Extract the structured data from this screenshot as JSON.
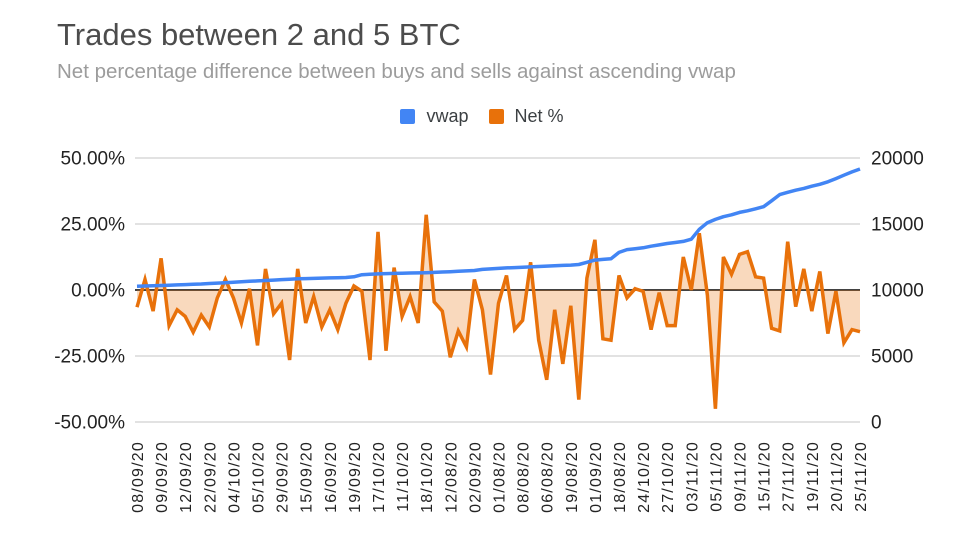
{
  "header": {
    "title": "Trades between 2 and 5 BTC",
    "subtitle": "Net percentage difference between buys and sells against ascending vwap"
  },
  "legend": [
    {
      "label": "vwap",
      "color": "#4285f4"
    },
    {
      "label": "Net %",
      "color": "#e8710a"
    }
  ],
  "chart_data": {
    "type": "line",
    "title": "Trades between 2 and 5 BTC",
    "subtitle": "Net percentage difference between buys and sells against ascending vwap",
    "x_labels": [
      "08/09/20",
      "09/09/20",
      "12/09/20",
      "22/09/20",
      "04/10/20",
      "05/10/20",
      "29/09/20",
      "15/09/20",
      "16/09/20",
      "19/09/20",
      "17/10/20",
      "11/10/20",
      "18/10/20",
      "12/08/20",
      "02/09/20",
      "01/08/20",
      "08/08/20",
      "06/08/20",
      "19/08/20",
      "01/09/20",
      "18/08/20",
      "24/10/20",
      "27/10/20",
      "03/11/20",
      "05/11/20",
      "09/11/20",
      "15/11/20",
      "27/11/20",
      "19/11/20",
      "20/11/20",
      "25/11/20"
    ],
    "label_every_n_points": 3,
    "series": [
      {
        "name": "vwap",
        "axis": "right",
        "color": "#4285f4",
        "values": [
          10280,
          10300,
          10320,
          10340,
          10360,
          10390,
          10410,
          10430,
          10455,
          10490,
          10520,
          10555,
          10590,
          10625,
          10660,
          10690,
          10720,
          10750,
          10790,
          10820,
          10845,
          10860,
          10880,
          10900,
          10920,
          10935,
          10945,
          11000,
          11160,
          11200,
          11220,
          11240,
          11255,
          11270,
          11285,
          11295,
          11310,
          11330,
          11360,
          11390,
          11420,
          11450,
          11480,
          11560,
          11600,
          11640,
          11675,
          11700,
          11725,
          11750,
          11780,
          11810,
          11840,
          11860,
          11885,
          11935,
          12100,
          12265,
          12320,
          12370,
          12850,
          13060,
          13130,
          13200,
          13320,
          13420,
          13520,
          13600,
          13680,
          13850,
          14600,
          15100,
          15350,
          15550,
          15700,
          15880,
          16000,
          16150,
          16310,
          16760,
          17230,
          17400,
          17560,
          17700,
          17860,
          18010,
          18200,
          18440,
          18700,
          18950,
          19170
        ]
      },
      {
        "name": "Net %",
        "axis": "left",
        "color": "#e8710a",
        "fill": "rgba(232,113,10,0.27)",
        "values": [
          -6.5,
          4,
          -8,
          12,
          -13.5,
          -7.5,
          -10,
          -16,
          -9.5,
          -14,
          -3,
          4,
          -3,
          -12.5,
          0.5,
          -21,
          8,
          -9,
          -5,
          -26.5,
          8,
          -12.5,
          -2.5,
          -14,
          -7.5,
          -15,
          -5,
          1.5,
          -0.5,
          -26.5,
          22,
          -23,
          8.5,
          -10,
          -2.5,
          -12.5,
          28.5,
          -4.5,
          -8,
          -25.5,
          -15.5,
          -21.5,
          4,
          -7.5,
          -32,
          -5,
          5.5,
          -15,
          -11.5,
          10.5,
          -19,
          -34,
          -7.5,
          -28,
          -6,
          -41.5,
          4.5,
          19,
          -18.5,
          -19,
          5.5,
          -3,
          0.5,
          -0.5,
          -15,
          -1,
          -13.5,
          -13.5,
          12.5,
          0,
          21.5,
          -2,
          -45,
          12.5,
          6,
          13.5,
          14.5,
          5,
          4.5,
          -14.5,
          -15.5,
          18.3,
          -6.3,
          8,
          -8,
          7,
          -16.5,
          -0.5,
          -20,
          -15,
          -15.8
        ]
      }
    ],
    "left_axis": {
      "ticks": [
        "50.00%",
        "25.00%",
        "0.00%",
        "-25.00%",
        "-50.00%"
      ],
      "range": [
        -50,
        50
      ]
    },
    "right_axis": {
      "ticks": [
        "20000",
        "15000",
        "10000",
        "5000",
        "0"
      ],
      "range": [
        0,
        20000
      ]
    },
    "grid_color": "#d9d9d9",
    "zero_line_color": "#424242"
  }
}
